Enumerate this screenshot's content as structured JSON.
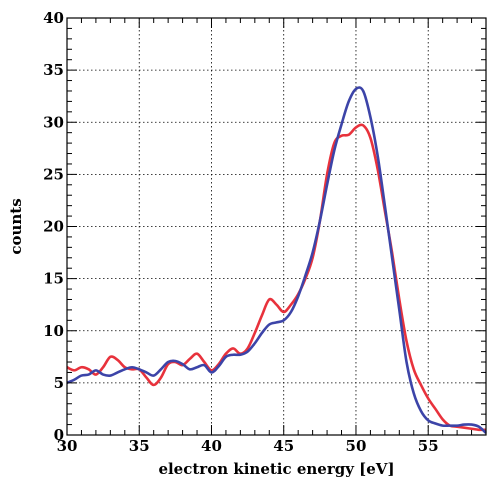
{
  "chart_data": {
    "type": "line",
    "title": "",
    "xlabel": "electron kinetic energy [eV]",
    "ylabel": "counts",
    "xlim": [
      30,
      59
    ],
    "ylim": [
      0,
      40
    ],
    "xticks": [
      30,
      35,
      40,
      45,
      50,
      55
    ],
    "yticks": [
      0,
      5,
      10,
      15,
      20,
      25,
      30,
      35,
      40
    ],
    "grid": true,
    "legend": "none",
    "series": [
      {
        "color": "#e8323c",
        "x": [
          30,
          30.5,
          31,
          31.5,
          32,
          32.5,
          33,
          33.5,
          34,
          34.5,
          35,
          35.5,
          36,
          36.5,
          37,
          37.5,
          38,
          38.5,
          39,
          39.5,
          40,
          40.5,
          41,
          41.5,
          42,
          42.5,
          43,
          43.5,
          44,
          44.5,
          45,
          45.5,
          46,
          46.5,
          47,
          47.5,
          48,
          48.5,
          49,
          49.5,
          50,
          50.5,
          51,
          51.5,
          52,
          52.5,
          53,
          53.5,
          54,
          54.5,
          55,
          55.5,
          56,
          56.5,
          57,
          57.5,
          58,
          58.5,
          59
        ],
        "y": [
          6.5,
          6.2,
          6.5,
          6.3,
          5.8,
          6.5,
          7.5,
          7.2,
          6.5,
          6.3,
          6.3,
          5.5,
          4.8,
          5.5,
          6.8,
          7.0,
          6.7,
          7.3,
          7.8,
          7.0,
          6.2,
          6.8,
          7.8,
          8.3,
          7.8,
          8.3,
          9.8,
          11.5,
          13.0,
          12.5,
          11.8,
          12.5,
          13.5,
          15.0,
          17.0,
          20.5,
          25.0,
          28.0,
          28.7,
          28.8,
          29.5,
          29.7,
          28.5,
          25.5,
          21.5,
          17.5,
          13.0,
          9.0,
          6.3,
          4.8,
          3.5,
          2.5,
          1.5,
          0.9,
          0.8,
          0.7,
          0.6,
          0.5,
          0.5
        ]
      },
      {
        "color": "#3c44a8",
        "x": [
          30,
          30.5,
          31,
          31.5,
          32,
          32.5,
          33,
          33.5,
          34,
          34.5,
          35,
          35.5,
          36,
          36.5,
          37,
          37.5,
          38,
          38.5,
          39,
          39.5,
          40,
          40.5,
          41,
          41.5,
          42,
          42.5,
          43,
          43.5,
          44,
          44.5,
          45,
          45.5,
          46,
          46.5,
          47,
          47.5,
          48,
          48.5,
          49,
          49.5,
          50,
          50.5,
          51,
          51.5,
          52,
          52.5,
          53,
          53.5,
          54,
          54.5,
          55,
          55.5,
          56,
          56.5,
          57,
          57.5,
          58,
          58.5,
          59
        ],
        "y": [
          5.0,
          5.3,
          5.7,
          5.8,
          6.2,
          5.8,
          5.7,
          6.0,
          6.3,
          6.5,
          6.3,
          6.0,
          5.7,
          6.3,
          7.0,
          7.1,
          6.8,
          6.3,
          6.5,
          6.7,
          6.0,
          6.6,
          7.5,
          7.7,
          7.7,
          8.0,
          8.8,
          9.8,
          10.6,
          10.8,
          11.0,
          11.8,
          13.3,
          15.3,
          17.5,
          20.5,
          24.0,
          27.3,
          29.8,
          32.0,
          33.2,
          33.0,
          30.5,
          26.8,
          22.0,
          17.0,
          12.0,
          7.0,
          4.0,
          2.3,
          1.4,
          1.1,
          0.9,
          0.9,
          0.9,
          1.0,
          1.0,
          0.8,
          0.2
        ]
      }
    ]
  }
}
